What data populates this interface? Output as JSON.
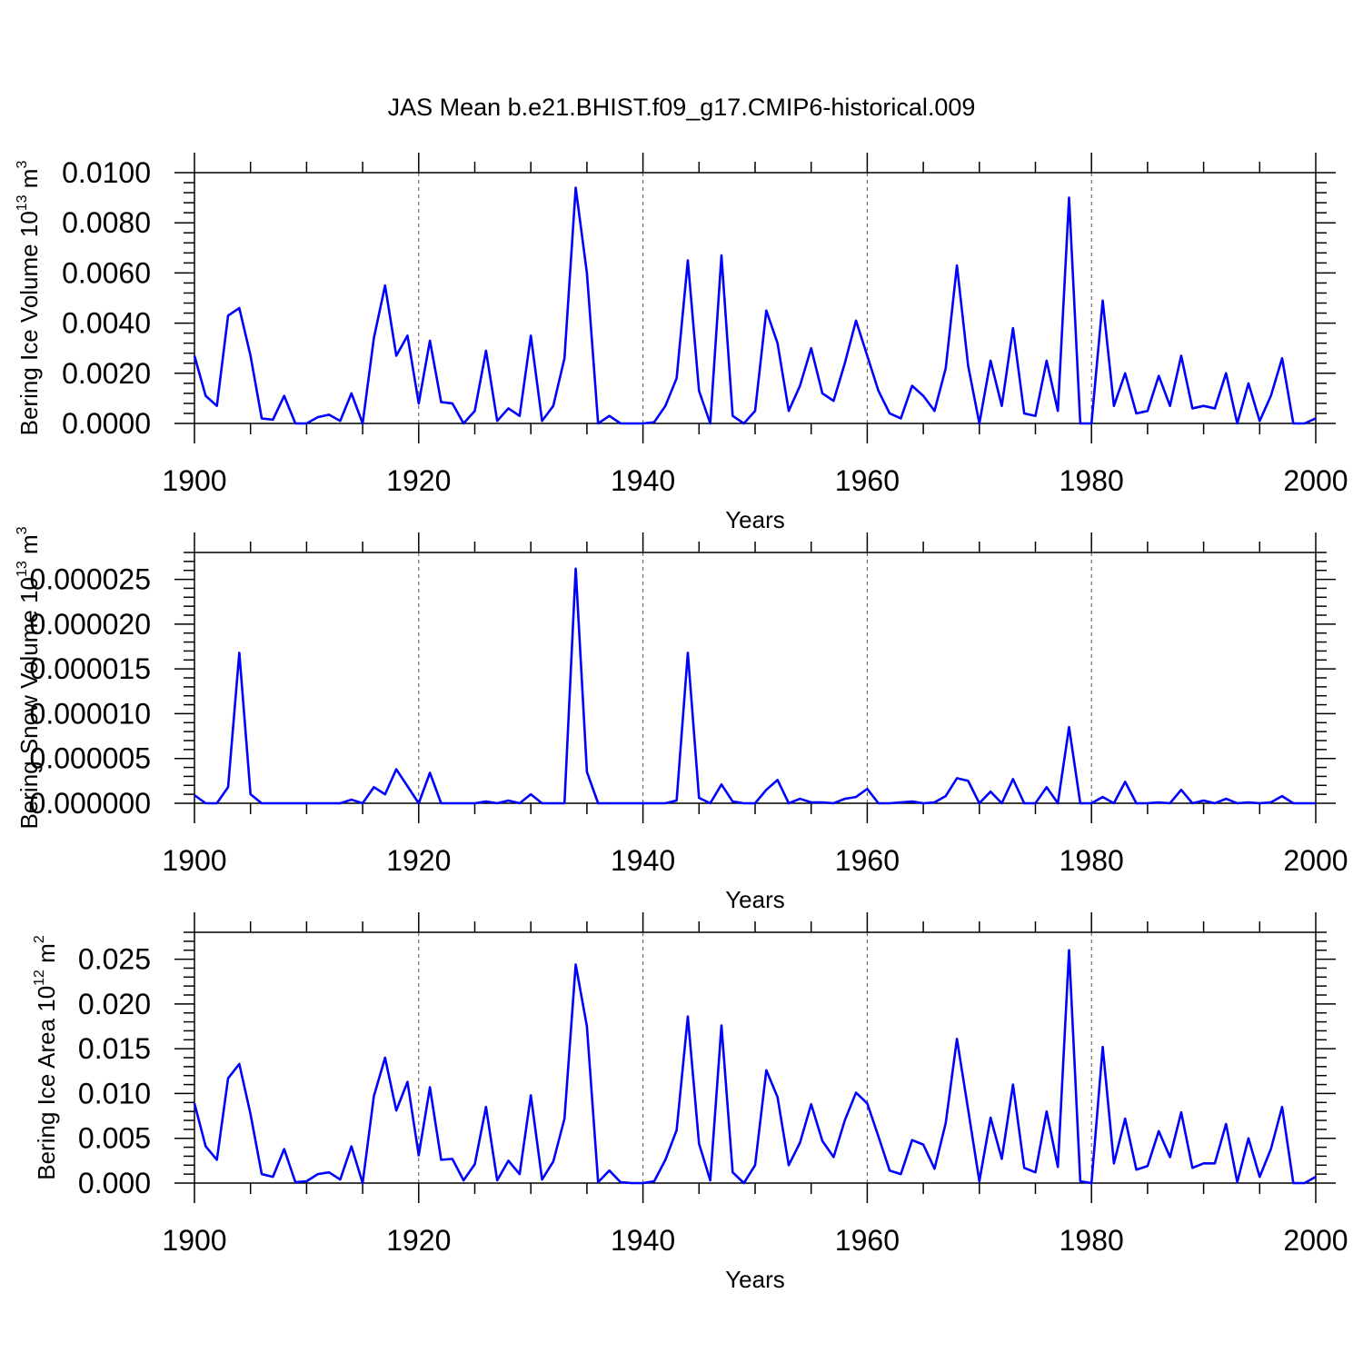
{
  "title": "JAS Mean b.e21.BHIST.f09_g17.CMIP6-historical.009",
  "colors": {
    "series": "#0000ff",
    "axis": "#000000",
    "grid": "#555555"
  },
  "chart_data": [
    {
      "type": "line",
      "ylabel": "Bering Ice Volume 10",
      "ylabel_exp": "13",
      "ylabel_unit": " m",
      "ylabel_unit_exp": "3",
      "xlabel": "Years",
      "xlim": [
        1900,
        2000
      ],
      "ylim": [
        0,
        0.01
      ],
      "xticks": [
        1900,
        1920,
        1940,
        1960,
        1980,
        2000
      ],
      "yticks": [
        0,
        0.002,
        0.004,
        0.006,
        0.008,
        0.01
      ],
      "ytick_labels": [
        "0.0000",
        "0.0020",
        "0.0040",
        "0.0060",
        "0.0080",
        "0.0100"
      ],
      "x_start": 1900,
      "values": [
        0.0027,
        0.0011,
        0.0007,
        0.0043,
        0.0046,
        0.0027,
        0.0002,
        0.00015,
        0.0011,
        0.0,
        0.0,
        0.00025,
        0.00035,
        0.0001,
        0.0012,
        0.0,
        0.0034,
        0.0055,
        0.0027,
        0.0035,
        0.0008,
        0.0033,
        0.00085,
        0.0008,
        0.0,
        0.0005,
        0.0029,
        0.0001,
        0.0006,
        0.0003,
        0.0035,
        0.0001,
        0.0007,
        0.0026,
        0.0094,
        0.006,
        0.0,
        0.0003,
        0.0,
        0.0,
        0.0,
        5e-05,
        0.0007,
        0.0018,
        0.0065,
        0.0013,
        0.0,
        0.0067,
        0.0003,
        0.0,
        0.0005,
        0.0045,
        0.0032,
        0.0005,
        0.0015,
        0.003,
        0.0012,
        0.0009,
        0.0024,
        0.0041,
        0.0027,
        0.0013,
        0.0004,
        0.0002,
        0.0015,
        0.0011,
        0.0005,
        0.0022,
        0.0063,
        0.0023,
        0.0,
        0.0025,
        0.0007,
        0.0038,
        0.0004,
        0.0003,
        0.0025,
        0.0005,
        0.009,
        0.0,
        0.0,
        0.0049,
        0.0007,
        0.002,
        0.0004,
        0.0005,
        0.0019,
        0.0007,
        0.0027,
        0.0006,
        0.0007,
        0.0006,
        0.002,
        0.0,
        0.0016,
        0.0001,
        0.0011,
        0.0026,
        0.0,
        0.0,
        0.0002
      ]
    },
    {
      "type": "line",
      "ylabel": "Bering Snow Volume 10",
      "ylabel_exp": "13",
      "ylabel_unit": " m",
      "ylabel_unit_exp": "3",
      "xlabel": "Years",
      "xlim": [
        1900,
        2000
      ],
      "ylim": [
        0,
        2.8e-05
      ],
      "xticks": [
        1900,
        1920,
        1940,
        1960,
        1980,
        2000
      ],
      "yticks": [
        0,
        5e-06,
        1e-05,
        1.5e-05,
        2e-05,
        2.5e-05
      ],
      "ytick_labels": [
        "0.000000",
        "0.000005",
        "0.000010",
        "0.000015",
        "0.000020",
        "0.000025"
      ],
      "x_start": 1900,
      "values": [
        9e-07,
        0.0,
        0.0,
        1.8e-06,
        1.68e-05,
        1e-06,
        0.0,
        0.0,
        0.0,
        0.0,
        0.0,
        0.0,
        0.0,
        0.0,
        4e-07,
        0.0,
        1.8e-06,
        1e-06,
        3.8e-06,
        1.9e-06,
        0.0,
        3.4e-06,
        0.0,
        0.0,
        0.0,
        0.0,
        2e-07,
        0.0,
        3e-07,
        0.0,
        1e-06,
        0.0,
        0.0,
        0.0,
        2.62e-05,
        3.5e-06,
        0.0,
        0.0,
        0.0,
        0.0,
        0.0,
        0.0,
        0.0,
        3e-07,
        1.68e-05,
        6e-07,
        0.0,
        2.1e-06,
        2e-07,
        0.0,
        0.0,
        1.5e-06,
        2.6e-06,
        0.0,
        5e-07,
        1e-07,
        1e-07,
        0.0,
        5e-07,
        7e-07,
        1.6e-06,
        0.0,
        0.0,
        1e-07,
        2e-07,
        0.0,
        1e-07,
        8e-07,
        2.8e-06,
        2.5e-06,
        0.0,
        1.3e-06,
        0.0,
        2.7e-06,
        0.0,
        0.0,
        1.8e-06,
        0.0,
        8.5e-06,
        0.0,
        0.0,
        7e-07,
        0.0,
        2.4e-06,
        0.0,
        0.0,
        1e-07,
        0.0,
        1.5e-06,
        0.0,
        3e-07,
        0.0,
        5e-07,
        0.0,
        1e-07,
        0.0,
        1e-07,
        8e-07,
        0.0,
        0.0,
        0.0
      ]
    },
    {
      "type": "line",
      "ylabel": "Bering Ice Area 10",
      "ylabel_exp": "12",
      "ylabel_unit": " m",
      "ylabel_unit_exp": "2",
      "xlabel": "Years",
      "xlim": [
        1900,
        2000
      ],
      "ylim": [
        0,
        0.028
      ],
      "xticks": [
        1900,
        1920,
        1940,
        1960,
        1980,
        2000
      ],
      "yticks": [
        0,
        0.005,
        0.01,
        0.015,
        0.02,
        0.025
      ],
      "ytick_labels": [
        "0.000",
        "0.005",
        "0.010",
        "0.015",
        "0.020",
        "0.025"
      ],
      "x_start": 1900,
      "values": [
        0.0089,
        0.0041,
        0.0026,
        0.0117,
        0.0133,
        0.0077,
        0.001,
        0.0007,
        0.0038,
        0.0001,
        0.0002,
        0.001,
        0.0012,
        0.0004,
        0.0041,
        0.0,
        0.0097,
        0.014,
        0.0081,
        0.0113,
        0.0031,
        0.0107,
        0.0026,
        0.0027,
        0.0003,
        0.0021,
        0.0085,
        0.0003,
        0.0025,
        0.001,
        0.0098,
        0.0004,
        0.0024,
        0.0072,
        0.0244,
        0.0175,
        0.0001,
        0.0014,
        0.0001,
        0.0,
        0.0,
        0.0002,
        0.0026,
        0.0059,
        0.0186,
        0.0044,
        0.0003,
        0.0176,
        0.0012,
        0.0,
        0.002,
        0.0126,
        0.0096,
        0.002,
        0.0045,
        0.0088,
        0.0047,
        0.0029,
        0.007,
        0.0101,
        0.0089,
        0.0052,
        0.0014,
        0.001,
        0.0048,
        0.0043,
        0.0016,
        0.0067,
        0.0161,
        0.0082,
        0.0002,
        0.0073,
        0.0027,
        0.011,
        0.0017,
        0.0012,
        0.008,
        0.0018,
        0.026,
        0.0002,
        0.0,
        0.0152,
        0.0022,
        0.0072,
        0.0015,
        0.0019,
        0.0058,
        0.0029,
        0.0079,
        0.0017,
        0.0022,
        0.0022,
        0.0066,
        0.0001,
        0.005,
        0.0007,
        0.0038,
        0.0085,
        0.0,
        0.0,
        0.0007
      ]
    }
  ]
}
